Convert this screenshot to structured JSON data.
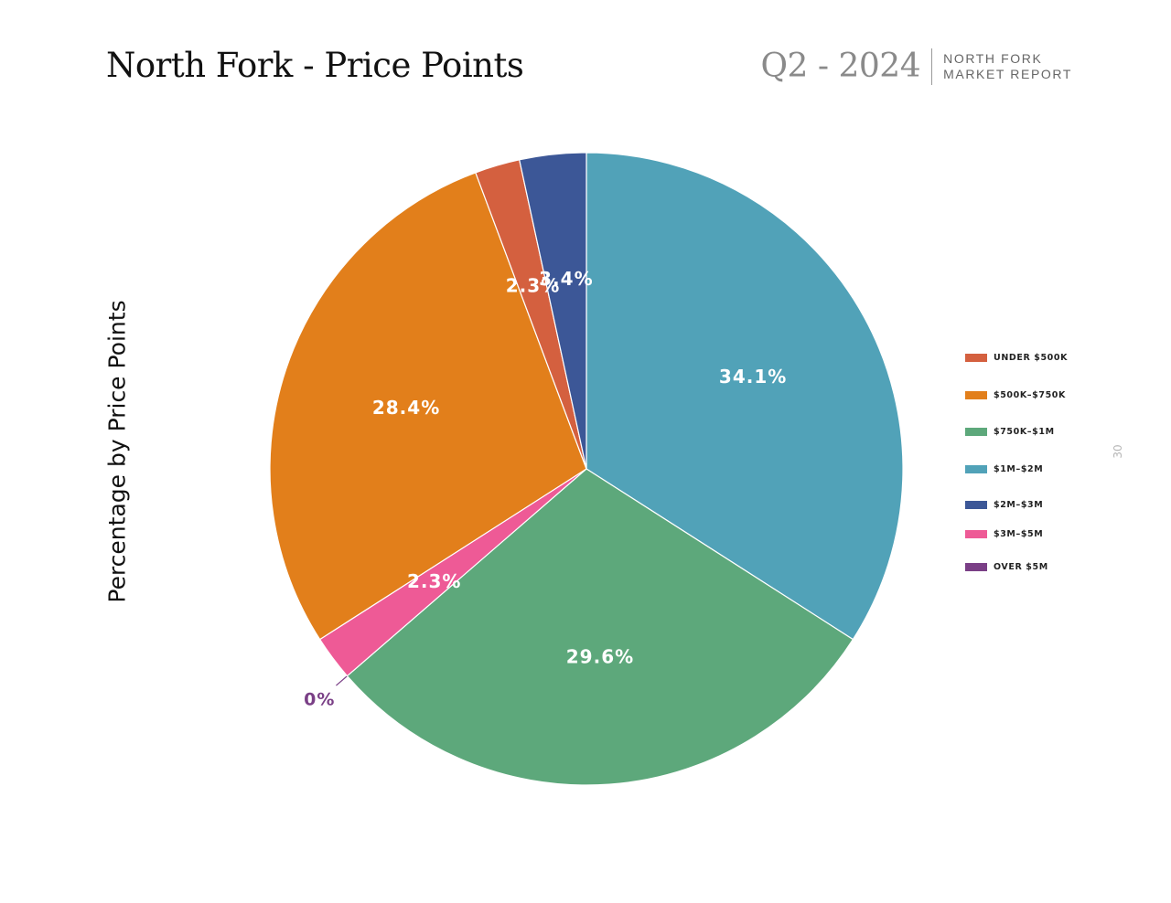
{
  "header": {
    "title": "North Fork - Price Points",
    "quarter": "Q2 - 2024",
    "report_line1": "NORTH FORK",
    "report_line2": "MARKET REPORT"
  },
  "page_number": "30",
  "chart_data": {
    "type": "pie",
    "ylabel": "Percentage by Price Points",
    "legend_position": "right",
    "slices": [
      {
        "label": "$1M–$2M",
        "value": 34.1,
        "display": "34.1%",
        "color": "#51a2b8"
      },
      {
        "label": "$750K–$1M",
        "value": 29.6,
        "display": "29.6%",
        "color": "#5da87b"
      },
      {
        "label": "OVER $5M",
        "value": 0,
        "display": "0%",
        "color": "#7a3f86"
      },
      {
        "label": "$3M–$5M",
        "value": 2.3,
        "display": "2.3%",
        "color": "#ee5a96"
      },
      {
        "label": "$500K–$750K",
        "value": 28.4,
        "display": "28.4%",
        "color": "#e27f1b"
      },
      {
        "label": "UNDER $500K",
        "value": 2.3,
        "display": "2.3%",
        "color": "#d4603f"
      },
      {
        "label": "$2M–$3M",
        "value": 3.4,
        "display": "3.4%",
        "color": "#3c5797"
      }
    ],
    "legend": [
      {
        "label": "UNDER $500K",
        "color": "#d4603f"
      },
      {
        "label": "$500K–$750K",
        "color": "#e27f1b"
      },
      {
        "label": "$750K–$1M",
        "color": "#5da87b"
      },
      {
        "label": "$1M–$2M",
        "color": "#51a2b8"
      },
      {
        "label": "$2M–$3M",
        "color": "#3c5797"
      },
      {
        "label": "$3M–$5M",
        "color": "#ee5a96"
      },
      {
        "label": "OVER $5M",
        "color": "#7a3f86"
      }
    ]
  }
}
